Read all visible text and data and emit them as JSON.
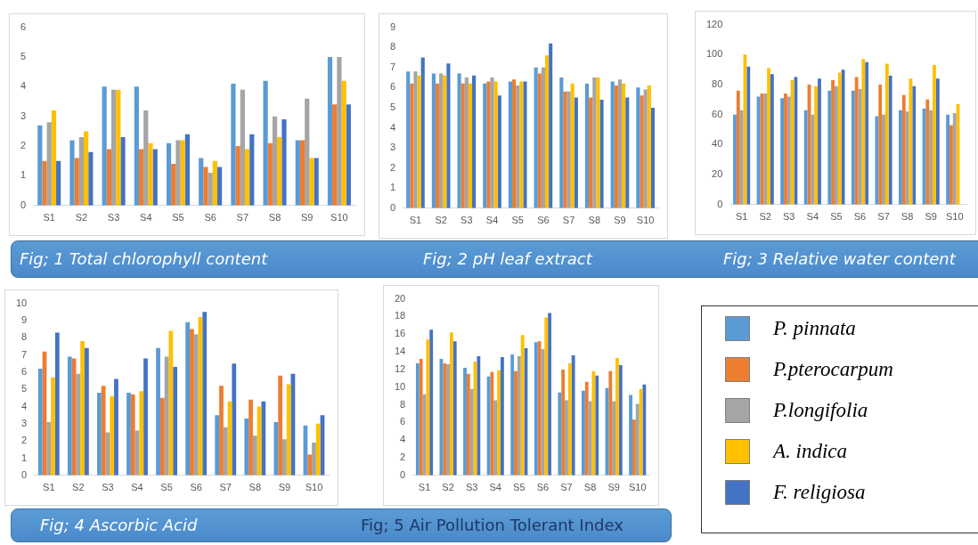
{
  "chart_data": [
    {
      "type": "bar",
      "title": "Fig; 1 Total chlorophyll content",
      "categories": [
        "S1",
        "S2",
        "S3",
        "S4",
        "S5",
        "S6",
        "S7",
        "S8",
        "S9",
        "S10"
      ],
      "ylim": [
        0,
        6
      ],
      "yticks": [
        0,
        1,
        2,
        3,
        4,
        5,
        6
      ],
      "grid": false,
      "legend": false,
      "series": [
        {
          "color": "#5b9bd5",
          "values": [
            2.7,
            2.2,
            4.0,
            4.0,
            2.1,
            1.6,
            4.1,
            4.2,
            2.2,
            5.0
          ]
        },
        {
          "color": "#ed7d31",
          "values": [
            1.5,
            1.6,
            1.9,
            1.9,
            1.4,
            1.3,
            2.0,
            2.1,
            2.2,
            3.4
          ]
        },
        {
          "color": "#a5a5a5",
          "values": [
            2.8,
            2.3,
            3.9,
            3.2,
            2.2,
            1.1,
            3.9,
            3.0,
            3.6,
            5.0
          ]
        },
        {
          "color": "#ffc000",
          "values": [
            3.2,
            2.5,
            3.9,
            2.1,
            2.2,
            1.5,
            1.9,
            2.3,
            1.6,
            4.2
          ]
        },
        {
          "color": "#4472c4",
          "values": [
            1.5,
            1.8,
            2.3,
            1.9,
            2.4,
            1.3,
            2.4,
            2.9,
            1.6,
            3.4
          ]
        }
      ]
    },
    {
      "type": "bar",
      "title": "Fig; 2 pH leaf extract",
      "categories": [
        "S1",
        "S2",
        "S3",
        "S4",
        "S5",
        "S6",
        "S7",
        "S8",
        "S9",
        "S10"
      ],
      "ylim": [
        0,
        9
      ],
      "yticks": [
        0,
        1,
        2,
        3,
        4,
        5,
        6,
        7,
        8,
        9
      ],
      "grid": false,
      "legend": false,
      "series": [
        {
          "color": "#5b9bd5",
          "values": [
            6.8,
            6.7,
            6.7,
            6.2,
            6.3,
            7.0,
            6.5,
            6.2,
            6.3,
            6.0
          ]
        },
        {
          "color": "#ed7d31",
          "values": [
            6.2,
            6.2,
            6.2,
            6.3,
            6.4,
            6.7,
            5.8,
            5.5,
            6.1,
            5.6
          ]
        },
        {
          "color": "#a5a5a5",
          "values": [
            6.8,
            6.7,
            6.5,
            6.5,
            6.1,
            7.0,
            5.8,
            6.5,
            6.4,
            5.9
          ]
        },
        {
          "color": "#ffc000",
          "values": [
            6.6,
            6.6,
            6.2,
            6.3,
            6.3,
            7.6,
            6.2,
            6.5,
            6.2,
            6.1
          ]
        },
        {
          "color": "#4472c4",
          "values": [
            7.5,
            7.2,
            6.6,
            5.6,
            6.3,
            8.2,
            5.5,
            5.4,
            5.5,
            5.0
          ]
        }
      ]
    },
    {
      "type": "bar",
      "title": "Fig; 3 Relative water content",
      "categories": [
        "S1",
        "S2",
        "S3",
        "S4",
        "S5",
        "S6",
        "S7",
        "S8",
        "S9",
        "S10"
      ],
      "ylim": [
        0,
        120
      ],
      "yticks": [
        0,
        20,
        40,
        60,
        80,
        100,
        120
      ],
      "grid": false,
      "legend": false,
      "series": [
        {
          "color": "#5b9bd5",
          "values": [
            60,
            72,
            71,
            63,
            76,
            76,
            59,
            63,
            64,
            60
          ]
        },
        {
          "color": "#ed7d31",
          "values": [
            76,
            74,
            74,
            80,
            83,
            85,
            80,
            73,
            70,
            53
          ]
        },
        {
          "color": "#a5a5a5",
          "values": [
            63,
            74,
            72,
            60,
            79,
            77,
            60,
            62,
            63,
            61
          ]
        },
        {
          "color": "#ffc000",
          "values": [
            100,
            91,
            83,
            79,
            88,
            97,
            94,
            84,
            93,
            67
          ]
        },
        {
          "color": "#4472c4",
          "values": [
            92,
            87,
            85,
            84,
            90,
            95,
            86,
            79,
            84,
            null
          ]
        }
      ]
    },
    {
      "type": "bar",
      "title": "Fig; 4 Ascorbic Acid",
      "categories": [
        "S1",
        "S2",
        "S3",
        "S4",
        "S5",
        "S6",
        "S7",
        "S8",
        "S9",
        "S10"
      ],
      "ylim": [
        0,
        10
      ],
      "yticks": [
        0,
        1,
        2,
        3,
        4,
        5,
        6,
        7,
        8,
        9,
        10
      ],
      "grid": false,
      "legend": false,
      "series": [
        {
          "color": "#5b9bd5",
          "values": [
            6.2,
            6.9,
            4.8,
            4.8,
            7.4,
            8.9,
            3.5,
            3.3,
            3.1,
            2.9
          ]
        },
        {
          "color": "#ed7d31",
          "values": [
            7.2,
            6.8,
            5.2,
            4.7,
            4.5,
            8.5,
            5.2,
            4.4,
            5.8,
            1.2
          ]
        },
        {
          "color": "#a5a5a5",
          "values": [
            3.1,
            5.9,
            2.5,
            2.6,
            6.9,
            8.2,
            2.8,
            2.3,
            2.1,
            1.9
          ]
        },
        {
          "color": "#ffc000",
          "values": [
            5.7,
            7.8,
            4.6,
            4.9,
            8.4,
            9.2,
            4.3,
            4.0,
            5.3,
            3.0
          ]
        },
        {
          "color": "#4472c4",
          "values": [
            8.3,
            7.4,
            5.6,
            6.8,
            6.3,
            9.5,
            6.5,
            4.3,
            5.9,
            3.5
          ]
        }
      ]
    },
    {
      "type": "bar",
      "title": "Fig; 5 Air Pollution Tolerant Index",
      "categories": [
        "S1",
        "S2",
        "S3",
        "S4",
        "S5",
        "S6",
        "S7",
        "S8",
        "S9",
        "S10"
      ],
      "ylim": [
        0,
        20
      ],
      "yticks": [
        0,
        2,
        4,
        6,
        8,
        10,
        12,
        14,
        16,
        18,
        20
      ],
      "grid": false,
      "legend": "right",
      "series": [
        {
          "name": "P. pinnata",
          "color": "#5b9bd5",
          "values": [
            12.7,
            13.2,
            12.2,
            11.2,
            13.7,
            15.1,
            9.4,
            9.6,
            9.9,
            9.1
          ]
        },
        {
          "name": "P.pterocarpum",
          "color": "#ed7d31",
          "values": [
            13.2,
            12.7,
            11.5,
            11.7,
            11.8,
            15.2,
            12.0,
            10.6,
            11.8,
            6.3
          ]
        },
        {
          "name": "P.longifolia",
          "color": "#a5a5a5",
          "values": [
            9.2,
            12.6,
            9.8,
            8.5,
            13.5,
            14.3,
            8.5,
            8.4,
            8.4,
            8.1
          ]
        },
        {
          "name": "A. indica",
          "color": "#ffc000",
          "values": [
            15.4,
            16.2,
            12.9,
            11.9,
            15.9,
            17.9,
            12.7,
            11.8,
            13.3,
            9.8
          ]
        },
        {
          "name": "F. religiosa",
          "color": "#4472c4",
          "values": [
            16.5,
            15.2,
            13.5,
            13.4,
            14.4,
            18.4,
            13.6,
            11.3,
            12.5,
            10.3
          ]
        }
      ]
    }
  ]
}
